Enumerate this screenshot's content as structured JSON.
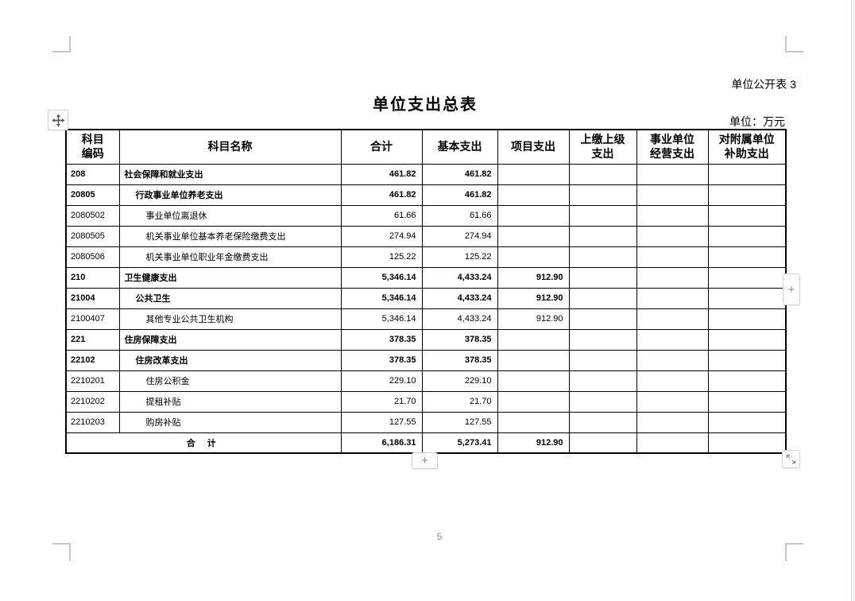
{
  "page": {
    "doc_label": "单位公开表 3",
    "title": "单位支出总表",
    "unit_note": "单位：万元",
    "page_number": "5",
    "colors": {
      "table_border": "#000000",
      "crop_mark": "#c6c6c6",
      "control_glyph": "#8a8a8a"
    }
  },
  "controls": {
    "plus_label": "+"
  },
  "table": {
    "headers": [
      "科目\n编码",
      "科目名称",
      "合计",
      "基本支出",
      "项目支出",
      "上缴上级\n支出",
      "事业单位\n经营支出",
      "对附属单位\n补助支出"
    ],
    "rows": [
      {
        "code": "208",
        "name": "社会保障和就业支出",
        "level": 1,
        "bold": true,
        "total": "461.82",
        "basic": "461.82",
        "project": "",
        "superior": "",
        "business": "",
        "subsidy": ""
      },
      {
        "code": "20805",
        "name": "行政事业单位养老支出",
        "level": 2,
        "bold": true,
        "total": "461.82",
        "basic": "461.82",
        "project": "",
        "superior": "",
        "business": "",
        "subsidy": ""
      },
      {
        "code": "2080502",
        "name": "事业单位离退休",
        "level": 3,
        "bold": false,
        "total": "61.66",
        "basic": "61.66",
        "project": "",
        "superior": "",
        "business": "",
        "subsidy": ""
      },
      {
        "code": "2080505",
        "name": "机关事业单位基本养老保险缴费支出",
        "level": 3,
        "bold": false,
        "total": "274.94",
        "basic": "274.94",
        "project": "",
        "superior": "",
        "business": "",
        "subsidy": ""
      },
      {
        "code": "2080506",
        "name": "机关事业单位职业年金缴费支出",
        "level": 3,
        "bold": false,
        "total": "125.22",
        "basic": "125.22",
        "project": "",
        "superior": "",
        "business": "",
        "subsidy": ""
      },
      {
        "code": "210",
        "name": "卫生健康支出",
        "level": 1,
        "bold": true,
        "total": "5,346.14",
        "basic": "4,433.24",
        "project": "912.90",
        "superior": "",
        "business": "",
        "subsidy": ""
      },
      {
        "code": "21004",
        "name": "公共卫生",
        "level": 2,
        "bold": true,
        "total": "5,346.14",
        "basic": "4,433.24",
        "project": "912.90",
        "superior": "",
        "business": "",
        "subsidy": ""
      },
      {
        "code": "2100407",
        "name": "其他专业公共卫生机构",
        "level": 3,
        "bold": false,
        "total": "5,346.14",
        "basic": "4,433.24",
        "project": "912.90",
        "superior": "",
        "business": "",
        "subsidy": ""
      },
      {
        "code": "221",
        "name": "住房保障支出",
        "level": 1,
        "bold": true,
        "total": "378.35",
        "basic": "378.35",
        "project": "",
        "superior": "",
        "business": "",
        "subsidy": ""
      },
      {
        "code": "22102",
        "name": "住房改革支出",
        "level": 2,
        "bold": true,
        "total": "378.35",
        "basic": "378.35",
        "project": "",
        "superior": "",
        "business": "",
        "subsidy": ""
      },
      {
        "code": "2210201",
        "name": "住房公积金",
        "level": 3,
        "bold": false,
        "total": "229.10",
        "basic": "229.10",
        "project": "",
        "superior": "",
        "business": "",
        "subsidy": ""
      },
      {
        "code": "2210202",
        "name": "提租补贴",
        "level": 3,
        "bold": false,
        "total": "21.70",
        "basic": "21.70",
        "project": "",
        "superior": "",
        "business": "",
        "subsidy": ""
      },
      {
        "code": "2210203",
        "name": "购房补贴",
        "level": 3,
        "bold": false,
        "total": "127.55",
        "basic": "127.55",
        "project": "",
        "superior": "",
        "business": "",
        "subsidy": ""
      }
    ],
    "total_row": {
      "label": "合 计",
      "total": "6,186.31",
      "basic": "5,273.41",
      "project": "912.90",
      "superior": "",
      "business": "",
      "subsidy": ""
    }
  }
}
